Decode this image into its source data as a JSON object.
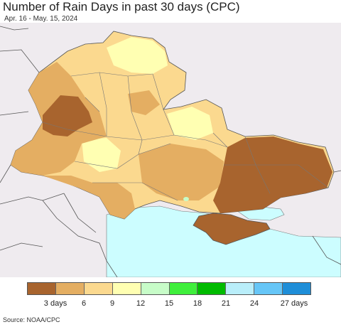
{
  "title": "Number of Rain Days in past 30 days (CPC)",
  "subtitle": "Apr. 16 - May. 15, 2024",
  "source": "Source: NOAA/CPC",
  "legend": {
    "colors": [
      "#a8642e",
      "#e4ae62",
      "#fbd98f",
      "#ffffb2",
      "#c7fcc8",
      "#3fef3c",
      "#00bb00",
      "#b9eefa",
      "#66c6f7",
      "#1e8ed8"
    ],
    "ticks": [
      "3 days",
      "6",
      "9",
      "12",
      "15",
      "18",
      "21",
      "24",
      "27 days"
    ]
  },
  "colors": {
    "background_land": "#efebef",
    "sea": "#ccfdff",
    "border": "#555555"
  }
}
